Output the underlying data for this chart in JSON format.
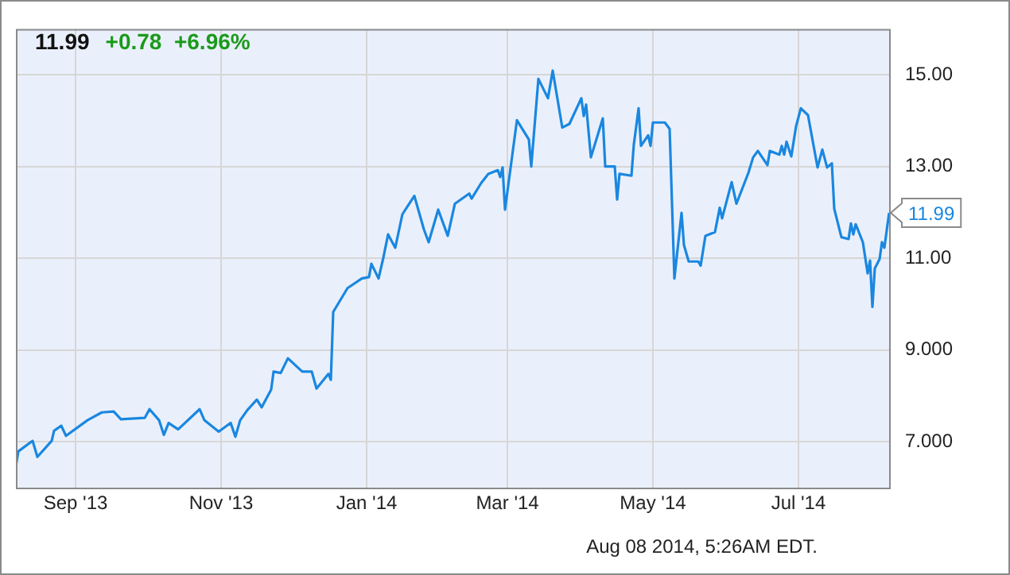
{
  "chart_data": {
    "type": "line",
    "title": "11.99",
    "subtitle": "+0.78  +6.96%",
    "x": [
      "2013-08-07",
      "2013-08-08",
      "2013-08-14",
      "2013-08-16",
      "2013-08-22",
      "2013-08-23",
      "2013-08-26",
      "2013-08-28",
      "2013-09-06",
      "2013-09-12",
      "2013-09-17",
      "2013-09-20",
      "2013-09-30",
      "2013-10-02",
      "2013-10-06",
      "2013-10-08",
      "2013-10-10",
      "2013-10-14",
      "2013-10-23",
      "2013-10-25",
      "2013-10-31",
      "2013-11-05",
      "2013-11-07",
      "2013-11-09",
      "2013-11-12",
      "2013-11-16",
      "2013-11-18",
      "2013-11-22",
      "2013-11-23",
      "2013-11-26",
      "2013-11-29",
      "2013-12-05",
      "2013-12-09",
      "2013-12-11",
      "2013-12-16",
      "2013-12-17",
      "2013-12-18",
      "2013-12-24",
      "2013-12-30",
      "2014-01-02",
      "2014-01-03",
      "2014-01-06",
      "2014-01-08",
      "2014-01-10",
      "2014-01-13",
      "2014-01-16",
      "2014-01-21",
      "2014-01-25",
      "2014-01-27",
      "2014-01-31",
      "2014-02-04",
      "2014-02-07",
      "2014-02-13",
      "2014-02-14",
      "2014-02-18",
      "2014-02-21",
      "2014-02-25",
      "2014-02-26",
      "2014-02-27",
      "2014-02-28",
      "2014-03-05",
      "2014-03-10",
      "2014-03-11",
      "2014-03-14",
      "2014-03-18",
      "2014-03-20",
      "2014-03-24",
      "2014-03-27",
      "2014-04-01",
      "2014-04-02",
      "2014-04-03",
      "2014-04-05",
      "2014-04-10",
      "2014-04-11",
      "2014-04-15",
      "2014-04-16",
      "2014-04-17",
      "2014-04-22",
      "2014-04-23",
      "2014-04-25",
      "2014-04-26",
      "2014-04-29",
      "2014-04-30",
      "2014-05-01",
      "2014-05-06",
      "2014-05-08",
      "2014-05-10",
      "2014-05-13",
      "2014-05-14",
      "2014-05-16",
      "2014-05-20",
      "2014-05-21",
      "2014-05-23",
      "2014-05-27",
      "2014-05-29",
      "2014-05-30",
      "2014-06-03",
      "2014-06-05",
      "2014-06-10",
      "2014-06-12",
      "2014-06-14",
      "2014-06-18",
      "2014-06-19",
      "2014-06-23",
      "2014-06-24",
      "2014-06-25",
      "2014-06-26",
      "2014-06-28",
      "2014-06-30",
      "2014-07-02",
      "2014-07-05",
      "2014-07-09",
      "2014-07-11",
      "2014-07-13",
      "2014-07-15",
      "2014-07-16",
      "2014-07-19",
      "2014-07-22",
      "2014-07-23",
      "2014-07-24",
      "2014-07-25",
      "2014-07-28",
      "2014-07-30",
      "2014-07-31",
      "2014-08-01",
      "2014-08-02",
      "2014-08-04",
      "2014-08-05",
      "2014-08-06",
      "2014-08-08"
    ],
    "series": [
      {
        "color": "#1a87e0",
        "values": [
          6.47,
          6.79,
          7.02,
          6.67,
          7.02,
          7.24,
          7.35,
          7.13,
          7.47,
          7.64,
          7.66,
          7.49,
          7.52,
          7.71,
          7.47,
          7.15,
          7.41,
          7.27,
          7.71,
          7.47,
          7.22,
          7.41,
          7.11,
          7.47,
          7.69,
          7.92,
          7.75,
          8.14,
          8.53,
          8.5,
          8.82,
          8.53,
          8.53,
          8.16,
          8.48,
          8.35,
          9.83,
          10.35,
          10.56,
          10.59,
          10.88,
          10.56,
          11.01,
          11.52,
          11.23,
          11.96,
          12.36,
          11.63,
          11.35,
          12.06,
          11.49,
          12.19,
          12.41,
          12.3,
          12.64,
          12.84,
          12.92,
          12.77,
          12.98,
          12.06,
          14.01,
          13.59,
          13.0,
          14.91,
          14.49,
          15.09,
          13.85,
          13.93,
          14.49,
          14.1,
          14.35,
          13.2,
          14.05,
          13.0,
          13.0,
          12.28,
          12.84,
          12.8,
          13.48,
          14.27,
          13.45,
          13.68,
          13.45,
          13.96,
          13.96,
          13.82,
          10.56,
          11.99,
          11.29,
          10.93,
          10.93,
          10.84,
          11.49,
          11.57,
          12.1,
          11.87,
          12.66,
          12.19,
          12.86,
          13.2,
          13.34,
          13.03,
          13.34,
          13.26,
          13.45,
          13.26,
          13.54,
          13.22,
          13.88,
          14.27,
          14.12,
          12.98,
          13.37,
          12.98,
          13.07,
          12.08,
          11.46,
          11.42,
          11.76,
          11.52,
          11.74,
          11.35,
          10.67,
          10.95,
          9.94,
          10.78,
          10.98,
          11.35,
          11.23,
          11.99
        ]
      }
    ],
    "xlim": [
      "2013-08-07",
      "2014-08-08"
    ],
    "xticks": [
      {
        "value": "2013-09-01",
        "label": "Sep '13"
      },
      {
        "value": "2013-11-01",
        "label": "Nov '13"
      },
      {
        "value": "2014-01-01",
        "label": "Jan '14"
      },
      {
        "value": "2014-03-01",
        "label": "Mar '14"
      },
      {
        "value": "2014-05-01",
        "label": "May '14"
      },
      {
        "value": "2014-07-01",
        "label": "Jul '14"
      }
    ],
    "ylim": [
      6,
      16
    ],
    "yticks": [
      {
        "value": 7,
        "label": "7.000"
      },
      {
        "value": 9,
        "label": "9.000"
      },
      {
        "value": 11,
        "label": "11.00"
      },
      {
        "value": 13,
        "label": "13.00"
      },
      {
        "value": 15,
        "label": "15.00"
      }
    ],
    "grid": true,
    "marker": "none",
    "line_style": "solid",
    "annotations": [
      {
        "text": "11.99",
        "x": "2014-08-08",
        "y": 11.99
      },
      "Aug 08 2014, 5:26AM EDT."
    ]
  }
}
